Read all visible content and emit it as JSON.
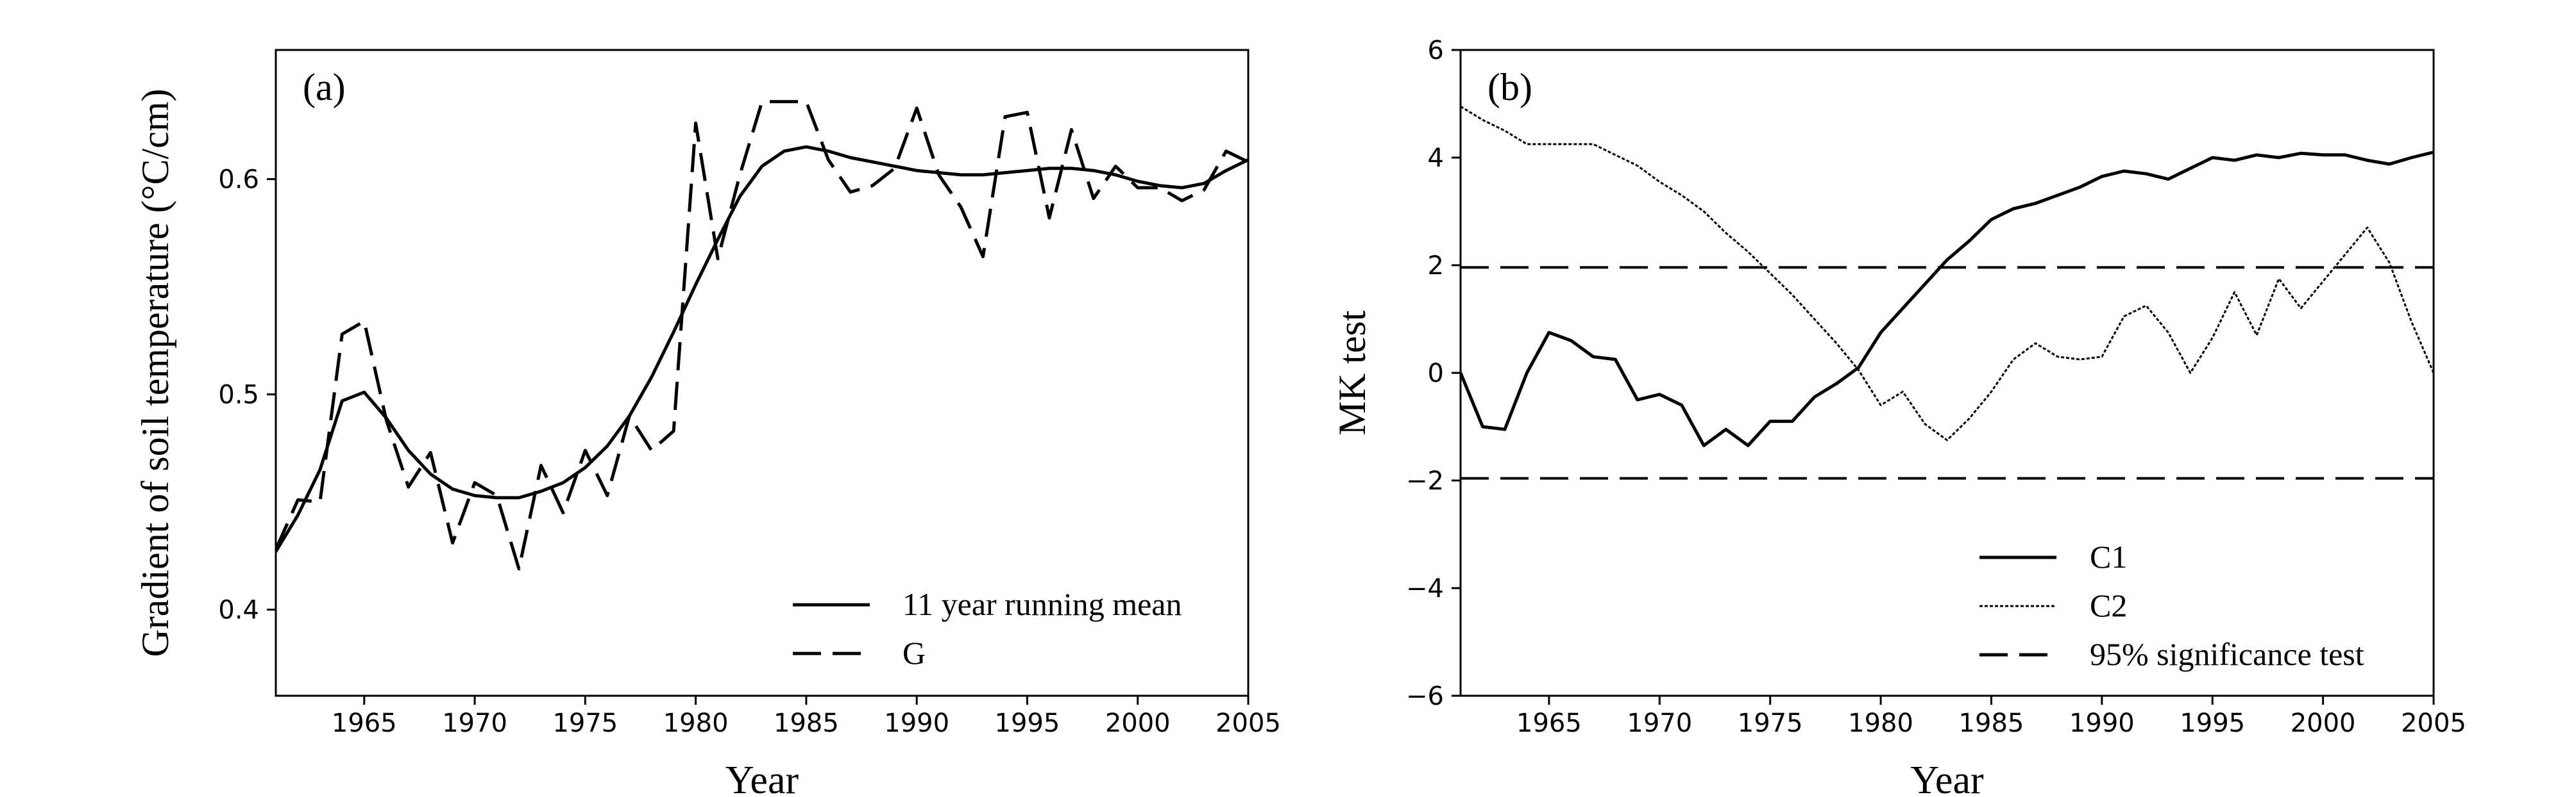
{
  "chart_data": [
    {
      "type": "line",
      "panel_label": "(a)",
      "xlabel": "Year",
      "ylabel": "Gradient of soil temperature (°C/cm)",
      "xlim": [
        1961,
        2005
      ],
      "ylim": [
        0.36,
        0.66
      ],
      "xticks": [
        1965,
        1970,
        1975,
        1980,
        1985,
        1990,
        1995,
        2000,
        2005
      ],
      "yticks": [
        0.4,
        0.5,
        0.6
      ],
      "ytick_labels": [
        "0.4",
        "0.5",
        "0.6"
      ],
      "legend_position": "bottom-right",
      "series": [
        {
          "name": "11 year running mean",
          "style": "solid",
          "x": [
            1961,
            1962,
            1963,
            1964,
            1965,
            1966,
            1967,
            1968,
            1969,
            1970,
            1971,
            1972,
            1973,
            1974,
            1975,
            1976,
            1977,
            1978,
            1979,
            1980,
            1981,
            1982,
            1983,
            1984,
            1985,
            1986,
            1987,
            1988,
            1989,
            1990,
            1991,
            1992,
            1993,
            1994,
            1995,
            1996,
            1997,
            1998,
            1999,
            2000,
            2001,
            2002,
            2003,
            2004,
            2005
          ],
          "y": [
            0.427,
            0.444,
            0.465,
            0.497,
            0.501,
            0.489,
            0.474,
            0.463,
            0.456,
            0.453,
            0.452,
            0.452,
            0.455,
            0.459,
            0.466,
            0.476,
            0.49,
            0.508,
            0.529,
            0.551,
            0.572,
            0.592,
            0.606,
            0.613,
            0.615,
            0.613,
            0.61,
            0.608,
            0.606,
            0.604,
            0.603,
            0.602,
            0.602,
            0.603,
            0.604,
            0.605,
            0.605,
            0.604,
            0.602,
            0.599,
            0.597,
            0.596,
            0.598,
            0.604,
            0.609
          ]
        },
        {
          "name": "G",
          "style": "dashed",
          "x": [
            1961,
            1962,
            1963,
            1964,
            1965,
            1966,
            1967,
            1968,
            1969,
            1970,
            1971,
            1972,
            1973,
            1974,
            1975,
            1976,
            1977,
            1978,
            1979,
            1980,
            1981,
            1982,
            1983,
            1984,
            1985,
            1986,
            1987,
            1988,
            1989,
            1990,
            1991,
            1992,
            1993,
            1994,
            1995,
            1996,
            1997,
            1998,
            1999,
            2000,
            2001,
            2002,
            2003,
            2004,
            2005
          ],
          "y": [
            0.428,
            0.451,
            0.45,
            0.528,
            0.534,
            0.488,
            0.457,
            0.473,
            0.431,
            0.459,
            0.453,
            0.419,
            0.467,
            0.445,
            0.474,
            0.453,
            0.49,
            0.474,
            0.483,
            0.626,
            0.563,
            0.602,
            0.636,
            0.636,
            0.636,
            0.609,
            0.594,
            0.597,
            0.605,
            0.633,
            0.602,
            0.587,
            0.564,
            0.629,
            0.631,
            0.582,
            0.623,
            0.591,
            0.606,
            0.596,
            0.596,
            0.59,
            0.595,
            0.613,
            0.608
          ]
        }
      ]
    },
    {
      "type": "line",
      "panel_label": "(b)",
      "xlabel": "Year",
      "ylabel": "MK test",
      "xlim": [
        1961,
        2005
      ],
      "ylim": [
        -6,
        6
      ],
      "xticks": [
        1965,
        1970,
        1975,
        1980,
        1985,
        1990,
        1995,
        2000,
        2005
      ],
      "yticks": [
        -6,
        -4,
        -2,
        0,
        2,
        4,
        6
      ],
      "ytick_labels": [
        "−6",
        "−4",
        "−2",
        "0",
        "2",
        "4",
        "6"
      ],
      "legend_position": "bottom-right",
      "series": [
        {
          "name": "C1",
          "style": "solid",
          "x": [
            1961,
            1962,
            1963,
            1964,
            1965,
            1966,
            1967,
            1968,
            1969,
            1970,
            1971,
            1972,
            1973,
            1974,
            1975,
            1976,
            1977,
            1978,
            1979,
            1980,
            1981,
            1982,
            1983,
            1984,
            1985,
            1986,
            1987,
            1988,
            1989,
            1990,
            1991,
            1992,
            1993,
            1994,
            1995,
            1996,
            1997,
            1998,
            1999,
            2000,
            2001,
            2002,
            2003,
            2004,
            2005
          ],
          "y": [
            0.0,
            -1.0,
            -1.05,
            0.0,
            0.75,
            0.6,
            0.3,
            0.25,
            -0.5,
            -0.4,
            -0.6,
            -1.35,
            -1.05,
            -1.35,
            -0.9,
            -0.9,
            -0.45,
            -0.2,
            0.1,
            0.75,
            1.2,
            1.65,
            2.1,
            2.45,
            2.85,
            3.05,
            3.15,
            3.3,
            3.45,
            3.65,
            3.75,
            3.7,
            3.6,
            3.8,
            4.0,
            3.95,
            4.05,
            4.0,
            4.08,
            4.05,
            4.05,
            3.95,
            3.88,
            4.0,
            4.1
          ]
        },
        {
          "name": "C2",
          "style": "dotted",
          "x": [
            1961,
            1962,
            1963,
            1964,
            1965,
            1966,
            1967,
            1968,
            1969,
            1970,
            1971,
            1972,
            1973,
            1974,
            1975,
            1976,
            1977,
            1978,
            1979,
            1980,
            1981,
            1982,
            1983,
            1984,
            1985,
            1986,
            1987,
            1988,
            1989,
            1990,
            1991,
            1992,
            1993,
            1994,
            1995,
            1996,
            1997,
            1998,
            1999,
            2000,
            2001,
            2002,
            2003,
            2004,
            2005
          ],
          "y": [
            4.95,
            4.7,
            4.5,
            4.25,
            4.25,
            4.25,
            4.25,
            4.05,
            3.85,
            3.55,
            3.3,
            3.0,
            2.6,
            2.25,
            1.85,
            1.45,
            1.0,
            0.55,
            0.05,
            -0.6,
            -0.35,
            -0.95,
            -1.25,
            -0.85,
            -0.35,
            0.25,
            0.55,
            0.3,
            0.25,
            0.3,
            1.05,
            1.25,
            0.75,
            0.0,
            0.65,
            1.5,
            0.7,
            1.75,
            1.2,
            1.7,
            2.2,
            2.7,
            2.05,
            0.95,
            0.0
          ]
        },
        {
          "name": "95% significance test",
          "style": "dashed",
          "levels": [
            1.96,
            -1.96
          ]
        }
      ]
    }
  ]
}
